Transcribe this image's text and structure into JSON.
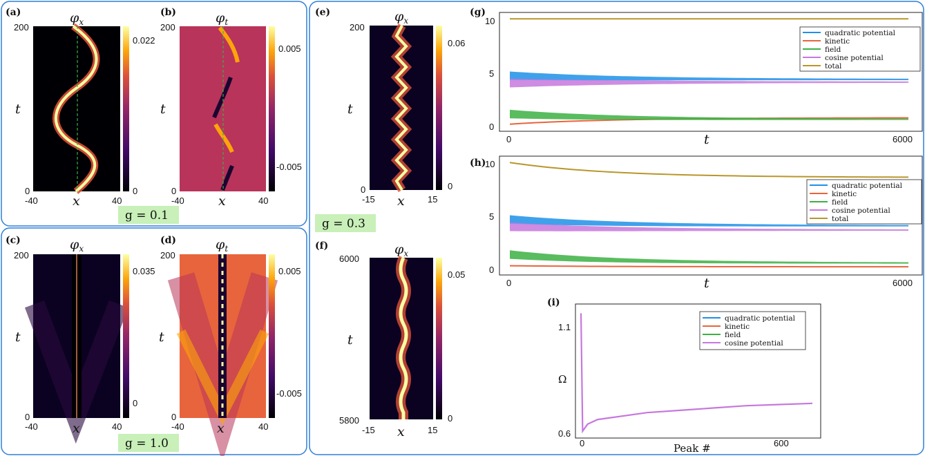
{
  "panels": {
    "a": {
      "label": "(a)",
      "field": "φ",
      "sub": "x",
      "t_ticks": [
        "200",
        "0"
      ],
      "x_ticks": [
        "-40",
        "40"
      ],
      "cbar": [
        "0.022",
        "0"
      ]
    },
    "b": {
      "label": "(b)",
      "field": "φ",
      "sub": "t",
      "t_ticks": [
        "200",
        "0"
      ],
      "x_ticks": [
        "-40",
        "40"
      ],
      "cbar": [
        "0.005",
        "-0.005"
      ]
    },
    "c": {
      "label": "(c)",
      "field": "φ",
      "sub": "x",
      "t_ticks": [
        "200",
        "0"
      ],
      "x_ticks": [
        "-40",
        "40"
      ],
      "cbar": [
        "0.035",
        "0"
      ]
    },
    "d": {
      "label": "(d)",
      "field": "φ",
      "sub": "t",
      "t_ticks": [
        "200",
        "0"
      ],
      "x_ticks": [
        "-40",
        "40"
      ],
      "cbar": [
        "0.005",
        "-0.005"
      ]
    },
    "e": {
      "label": "(e)",
      "field": "φ",
      "sub": "x",
      "t_ticks": [
        "200",
        "0"
      ],
      "x_ticks": [
        "-15",
        "15"
      ],
      "cbar": [
        "0.06",
        "0"
      ]
    },
    "f": {
      "label": "(f)",
      "field": "φ",
      "sub": "x",
      "t_ticks": [
        "6000",
        "5800"
      ],
      "x_ticks": [
        "-15",
        "15"
      ],
      "cbar": [
        "0.05",
        "0"
      ]
    },
    "g": {
      "label": "(g)",
      "y_ticks": [
        "10",
        "5",
        "0"
      ],
      "x_ticks": [
        "0",
        "6000"
      ],
      "xlabel": "t"
    },
    "h": {
      "label": "(h)",
      "y_ticks": [
        "10",
        "5",
        "0"
      ],
      "x_ticks": [
        "0",
        "6000"
      ],
      "xlabel": "t"
    },
    "i": {
      "label": "(i)",
      "y_ticks": [
        "1.1",
        "Ω",
        "0.6"
      ],
      "x_ticks": [
        "0",
        "600"
      ],
      "xlabel": "Peak #"
    }
  },
  "axis_symbols": {
    "t": "t",
    "x": "x"
  },
  "g_tags": {
    "g01": "g = 0.1",
    "g10": "g = 1.0",
    "g03": "g = 0.3"
  },
  "legend_energy": [
    "quadratic potential",
    "kinetic",
    "field",
    "cosine potential",
    "total"
  ],
  "legend_freq": [
    "quadratic potential",
    "kinetic",
    "field",
    "cosine potential"
  ],
  "colors": {
    "quadratic": "#1e90e8",
    "kinetic": "#e8643c",
    "field": "#3cb043",
    "cosine": "#c678dd",
    "total": "#b8962a",
    "frame": "#2f7fd8",
    "gbox": "#c8f0b8"
  },
  "chart_data": [
    {
      "type": "area",
      "panel": "g",
      "xlabel": "t",
      "x": [
        0,
        6000
      ],
      "ylim": [
        0,
        10
      ],
      "series": [
        {
          "name": "quadratic potential",
          "values": [
            4.7,
            4.35
          ]
        },
        {
          "name": "kinetic",
          "values": [
            0.1,
            0.7
          ]
        },
        {
          "name": "field",
          "values": [
            1.1,
            0.6
          ]
        },
        {
          "name": "cosine potential",
          "values": [
            4.0,
            4.1
          ]
        },
        {
          "name": "total",
          "values": [
            10,
            10
          ]
        }
      ]
    },
    {
      "type": "area",
      "panel": "h",
      "xlabel": "t",
      "x": [
        0,
        6000
      ],
      "ylim": [
        0,
        10
      ],
      "series": [
        {
          "name": "quadratic potential",
          "values": [
            4.7,
            4.1
          ]
        },
        {
          "name": "kinetic",
          "values": [
            0.3,
            0.2
          ]
        },
        {
          "name": "field",
          "values": [
            1.4,
            0.6
          ]
        },
        {
          "name": "cosine potential",
          "values": [
            4.0,
            3.7
          ]
        },
        {
          "name": "total",
          "values": [
            10,
            8.6
          ]
        }
      ]
    },
    {
      "type": "line",
      "panel": "i",
      "xlabel": "Peak #",
      "ylabel": "Ω",
      "x": [
        0,
        5,
        20,
        50,
        100,
        200,
        300,
        400,
        500,
        600,
        700
      ],
      "series": [
        {
          "name": "cosine potential",
          "values": [
            1.12,
            0.61,
            0.64,
            0.66,
            0.67,
            0.69,
            0.7,
            0.71,
            0.72,
            0.725,
            0.73
          ]
        }
      ]
    }
  ]
}
